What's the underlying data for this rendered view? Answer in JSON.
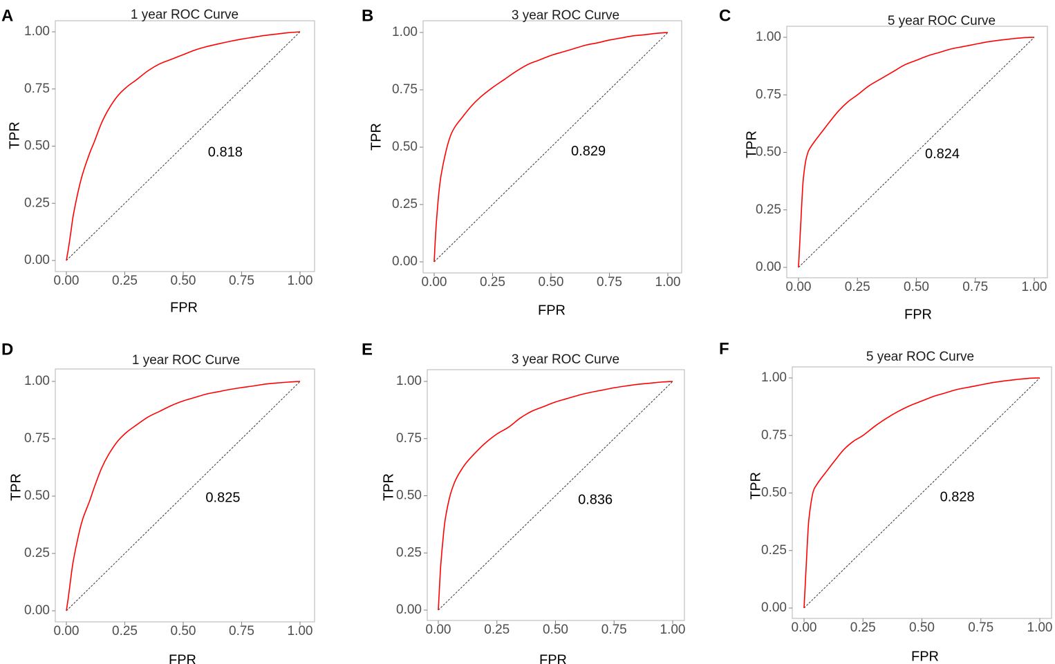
{
  "colors": {
    "curve": "#ff0000",
    "diagonal": "#333333",
    "frame": "#b3b3b3"
  },
  "chart_data": [
    {
      "panel": "A",
      "type": "line",
      "title": "1 year ROC Curve",
      "xlabel": "FPR",
      "ylabel": "TPR",
      "xlim": [
        0,
        1
      ],
      "ylim": [
        0,
        1
      ],
      "xticks": [
        "0.00",
        "0.25",
        "0.50",
        "0.75",
        "1.00"
      ],
      "yticks": [
        "0.00",
        "0.25",
        "0.50",
        "0.75",
        "1.00"
      ],
      "auc_label": "0.818",
      "auc_position": [
        0.68,
        0.47
      ],
      "diagonal": {
        "x": [
          0,
          1
        ],
        "y": [
          0,
          1
        ]
      },
      "series": [
        {
          "name": "ROC",
          "x": [
            0,
            0.01,
            0.02,
            0.03,
            0.05,
            0.07,
            0.1,
            0.12,
            0.15,
            0.18,
            0.22,
            0.26,
            0.3,
            0.35,
            0.4,
            0.45,
            0.5,
            0.55,
            0.6,
            0.65,
            0.7,
            0.75,
            0.8,
            0.85,
            0.9,
            0.95,
            1.0
          ],
          "y": [
            0,
            0.06,
            0.13,
            0.2,
            0.3,
            0.38,
            0.47,
            0.52,
            0.6,
            0.66,
            0.72,
            0.76,
            0.79,
            0.83,
            0.86,
            0.88,
            0.9,
            0.92,
            0.935,
            0.947,
            0.958,
            0.968,
            0.976,
            0.984,
            0.99,
            0.996,
            1.0
          ]
        }
      ]
    },
    {
      "panel": "B",
      "type": "line",
      "title": "3 year ROC Curve",
      "xlabel": "FPR",
      "ylabel": "TPR",
      "xlim": [
        0,
        1
      ],
      "ylim": [
        0,
        1
      ],
      "xticks": [
        "0.00",
        "0.25",
        "0.50",
        "0.75",
        "1.00"
      ],
      "yticks": [
        "0.00",
        "0.25",
        "0.50",
        "0.75",
        "1.00"
      ],
      "auc_label": "0.829",
      "auc_position": [
        0.66,
        0.48
      ],
      "diagonal": {
        "x": [
          0,
          1
        ],
        "y": [
          0,
          1
        ]
      },
      "series": [
        {
          "name": "ROC",
          "x": [
            0,
            0.005,
            0.01,
            0.02,
            0.03,
            0.05,
            0.07,
            0.09,
            0.12,
            0.16,
            0.2,
            0.25,
            0.3,
            0.35,
            0.4,
            0.45,
            0.5,
            0.55,
            0.6,
            0.65,
            0.7,
            0.75,
            0.8,
            0.85,
            0.9,
            0.95,
            1.0
          ],
          "y": [
            0,
            0.1,
            0.18,
            0.3,
            0.38,
            0.48,
            0.55,
            0.59,
            0.63,
            0.68,
            0.72,
            0.76,
            0.795,
            0.83,
            0.86,
            0.88,
            0.9,
            0.915,
            0.93,
            0.945,
            0.955,
            0.967,
            0.976,
            0.985,
            0.99,
            0.996,
            1.0
          ]
        }
      ]
    },
    {
      "panel": "C",
      "type": "line",
      "title": "5 year ROC Curve",
      "xlabel": "FPR",
      "ylabel": "TPR",
      "xlim": [
        0,
        1
      ],
      "ylim": [
        0,
        1
      ],
      "xticks": [
        "0.00",
        "0.25",
        "0.50",
        "0.75",
        "1.00"
      ],
      "yticks": [
        "0.00",
        "0.25",
        "0.50",
        "0.75",
        "1.00"
      ],
      "auc_label": "0.824",
      "auc_position": [
        0.61,
        0.49
      ],
      "diagonal": {
        "x": [
          0,
          1
        ],
        "y": [
          0,
          1
        ]
      },
      "series": [
        {
          "name": "ROC",
          "x": [
            0,
            0.005,
            0.01,
            0.015,
            0.02,
            0.03,
            0.04,
            0.05,
            0.07,
            0.1,
            0.13,
            0.17,
            0.21,
            0.25,
            0.3,
            0.35,
            0.4,
            0.45,
            0.5,
            0.55,
            0.6,
            0.65,
            0.7,
            0.75,
            0.8,
            0.85,
            0.9,
            0.95,
            1.0
          ],
          "y": [
            0,
            0.1,
            0.2,
            0.3,
            0.38,
            0.46,
            0.5,
            0.52,
            0.55,
            0.59,
            0.63,
            0.68,
            0.72,
            0.75,
            0.79,
            0.82,
            0.85,
            0.88,
            0.9,
            0.92,
            0.935,
            0.95,
            0.96,
            0.97,
            0.98,
            0.987,
            0.993,
            0.998,
            1.0
          ]
        }
      ]
    },
    {
      "panel": "D",
      "type": "line",
      "title": "1 year ROC Curve",
      "xlabel": "FPR",
      "ylabel": "TPR",
      "xlim": [
        0,
        1
      ],
      "ylim": [
        0,
        1
      ],
      "xticks": [
        "0.00",
        "0.25",
        "0.50",
        "0.75",
        "1.00"
      ],
      "yticks": [
        "0.00",
        "0.25",
        "0.50",
        "0.75",
        "1.00"
      ],
      "auc_label": "0.825",
      "auc_position": [
        0.67,
        0.49
      ],
      "diagonal": {
        "x": [
          0,
          1
        ],
        "y": [
          0,
          1
        ]
      },
      "series": [
        {
          "name": "ROC",
          "x": [
            0,
            0.01,
            0.02,
            0.03,
            0.05,
            0.07,
            0.1,
            0.12,
            0.15,
            0.18,
            0.22,
            0.26,
            0.3,
            0.35,
            0.4,
            0.45,
            0.5,
            0.55,
            0.6,
            0.65,
            0.7,
            0.75,
            0.8,
            0.85,
            0.9,
            0.95,
            1.0
          ],
          "y": [
            0,
            0.07,
            0.15,
            0.22,
            0.32,
            0.4,
            0.48,
            0.54,
            0.62,
            0.68,
            0.74,
            0.78,
            0.81,
            0.845,
            0.87,
            0.895,
            0.915,
            0.93,
            0.945,
            0.955,
            0.965,
            0.973,
            0.98,
            0.988,
            0.993,
            0.997,
            1.0
          ]
        }
      ]
    },
    {
      "panel": "E",
      "type": "line",
      "title": "3 year ROC Curve",
      "xlabel": "FPR",
      "ylabel": "TPR",
      "xlim": [
        0,
        1
      ],
      "ylim": [
        0,
        1
      ],
      "xticks": [
        "0.00",
        "0.25",
        "0.50",
        "0.75",
        "1.00"
      ],
      "yticks": [
        "0.00",
        "0.25",
        "0.50",
        "0.75",
        "1.00"
      ],
      "auc_label": "0.836",
      "auc_position": [
        0.67,
        0.48
      ],
      "diagonal": {
        "x": [
          0,
          1
        ],
        "y": [
          0,
          1
        ]
      },
      "series": [
        {
          "name": "ROC",
          "x": [
            0,
            0.005,
            0.01,
            0.02,
            0.03,
            0.05,
            0.07,
            0.09,
            0.12,
            0.16,
            0.2,
            0.25,
            0.3,
            0.35,
            0.4,
            0.45,
            0.5,
            0.55,
            0.6,
            0.65,
            0.7,
            0.75,
            0.8,
            0.85,
            0.9,
            0.95,
            1.0
          ],
          "y": [
            0,
            0.1,
            0.19,
            0.31,
            0.4,
            0.5,
            0.56,
            0.6,
            0.645,
            0.69,
            0.73,
            0.77,
            0.8,
            0.84,
            0.87,
            0.89,
            0.91,
            0.925,
            0.94,
            0.952,
            0.962,
            0.972,
            0.98,
            0.987,
            0.992,
            0.997,
            1.0
          ]
        }
      ]
    },
    {
      "panel": "F",
      "type": "line",
      "title": "5 year ROC Curve",
      "xlabel": "FPR",
      "ylabel": "TPR",
      "xlim": [
        0,
        1
      ],
      "ylim": [
        0,
        1
      ],
      "xticks": [
        "0.00",
        "0.25",
        "0.50",
        "0.75",
        "1.00"
      ],
      "yticks": [
        "0.00",
        "0.25",
        "0.50",
        "0.75",
        "1.00"
      ],
      "auc_label": "0.828",
      "auc_position": [
        0.65,
        0.48
      ],
      "diagonal": {
        "x": [
          0,
          1
        ],
        "y": [
          0,
          1
        ]
      },
      "series": [
        {
          "name": "ROC",
          "x": [
            0,
            0.005,
            0.01,
            0.015,
            0.02,
            0.03,
            0.04,
            0.05,
            0.07,
            0.1,
            0.13,
            0.17,
            0.21,
            0.25,
            0.3,
            0.35,
            0.4,
            0.45,
            0.5,
            0.55,
            0.6,
            0.65,
            0.7,
            0.75,
            0.8,
            0.85,
            0.9,
            0.95,
            1.0
          ],
          "y": [
            0,
            0.1,
            0.2,
            0.3,
            0.38,
            0.46,
            0.51,
            0.53,
            0.56,
            0.6,
            0.64,
            0.69,
            0.725,
            0.75,
            0.79,
            0.825,
            0.855,
            0.88,
            0.9,
            0.92,
            0.935,
            0.95,
            0.96,
            0.97,
            0.98,
            0.987,
            0.993,
            0.998,
            1.0
          ]
        }
      ]
    }
  ]
}
